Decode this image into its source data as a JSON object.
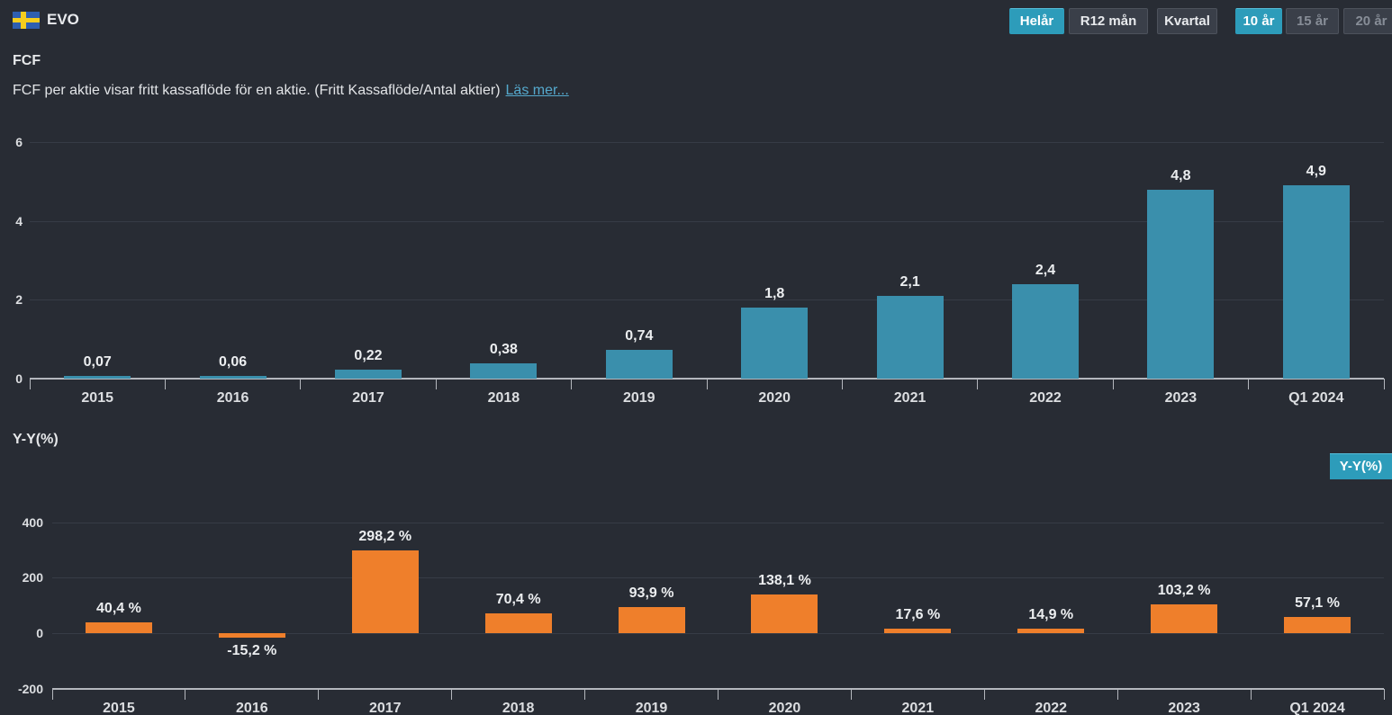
{
  "header": {
    "ticker": "EVO",
    "flag": "sweden",
    "period_buttons": [
      {
        "label": "Helår",
        "active": true
      },
      {
        "label": "R12 mån",
        "active": false
      },
      {
        "label": "Kvartal",
        "active": false
      }
    ],
    "range_buttons": [
      {
        "label": "10 år",
        "active": true
      },
      {
        "label": "15 år",
        "active": false,
        "muted": true
      },
      {
        "label": "20 år",
        "active": false,
        "muted": true
      }
    ]
  },
  "section": {
    "title": "FCF",
    "description": "FCF per aktie visar fritt kassaflöde för en aktie. (Fritt Kassaflöde/Antal aktier)",
    "read_more_label": "Läs mer..."
  },
  "yy_section": {
    "title": "Y-Y(%)",
    "button_label": "Y-Y(%)"
  },
  "colors": {
    "background": "#282c34",
    "accent_teal": "#2d9cba",
    "bar_teal": "#3a8fac",
    "bar_orange": "#ef7f2b",
    "link": "#55a9cd",
    "axis": "#b4b7bd",
    "grid": "#373c46"
  },
  "chart_data": [
    {
      "type": "bar",
      "title": "FCF per aktie",
      "categories": [
        "2015",
        "2016",
        "2017",
        "2018",
        "2019",
        "2020",
        "2021",
        "2022",
        "2023",
        "Q1 2024"
      ],
      "values": [
        0.07,
        0.06,
        0.22,
        0.38,
        0.74,
        1.8,
        2.1,
        2.4,
        4.8,
        4.9
      ],
      "value_labels": [
        "0,07",
        "0,06",
        "0,22",
        "0,38",
        "0,74",
        "1,8",
        "2,1",
        "2,4",
        "4,8",
        "4,9"
      ],
      "yticks": [
        {
          "value": 0,
          "label": "0"
        },
        {
          "value": 2,
          "label": "2"
        },
        {
          "value": 4,
          "label": "4"
        },
        {
          "value": 6,
          "label": "6"
        }
      ],
      "ylim": [
        0,
        6
      ],
      "xlabel": "",
      "ylabel": "",
      "grid": true,
      "legend": "none",
      "bar_color": "#3a8fac"
    },
    {
      "type": "bar",
      "title": "Y-Y(%)",
      "categories": [
        "2015",
        "2016",
        "2017",
        "2018",
        "2019",
        "2020",
        "2021",
        "2022",
        "2023",
        "Q1 2024"
      ],
      "values": [
        40.4,
        -15.2,
        298.2,
        70.4,
        93.9,
        138.1,
        17.6,
        14.9,
        103.2,
        57.1
      ],
      "value_labels": [
        "40,4 %",
        "-15,2 %",
        "298,2 %",
        "70,4 %",
        "93,9 %",
        "138,1 %",
        "17,6 %",
        "14,9 %",
        "103,2 %",
        "57,1 %"
      ],
      "yticks": [
        {
          "value": -200,
          "label": "-200"
        },
        {
          "value": 0,
          "label": "0"
        },
        {
          "value": 200,
          "label": "200"
        },
        {
          "value": 400,
          "label": "400"
        }
      ],
      "ylim": [
        -200,
        460
      ],
      "xlabel": "",
      "ylabel": "",
      "grid": true,
      "legend": "none",
      "bar_color": "#ef7f2b"
    }
  ]
}
